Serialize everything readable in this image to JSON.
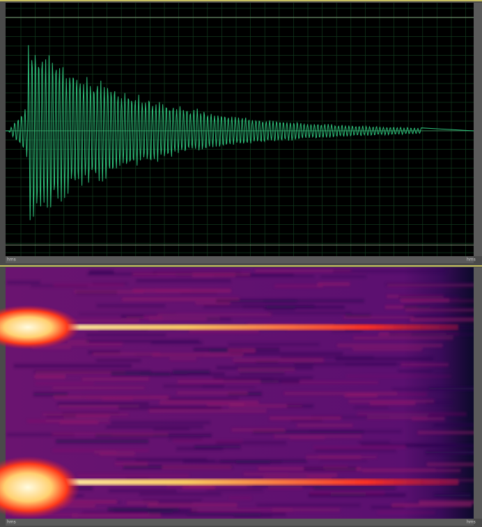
{
  "waveform": {
    "axis_unit_left": "hms",
    "axis_unit_right": "hms"
  },
  "spectrogram": {
    "axis_unit_left": "hms",
    "axis_unit_right": "hms"
  }
}
